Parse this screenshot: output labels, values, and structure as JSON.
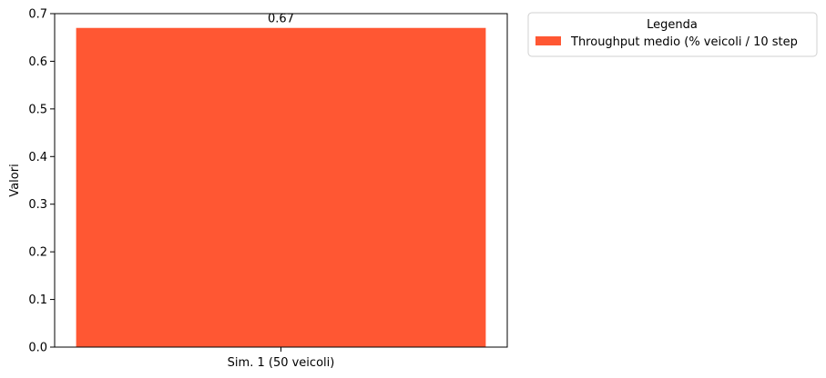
{
  "chart_data": {
    "type": "bar",
    "categories": [
      "Sim. 1 (50 veicoli)"
    ],
    "series": [
      {
        "name": "Throughput medio (% veicoli / 10 step",
        "values": [
          0.67
        ],
        "color": "#ff5733"
      }
    ],
    "data_labels": [
      "0.67"
    ],
    "xlabel": "",
    "ylabel": "Valori",
    "ylim": [
      0,
      0.7
    ],
    "yticks": [
      0.0,
      0.1,
      0.2,
      0.3,
      0.4,
      0.5,
      0.6,
      0.7
    ],
    "ytick_labels": [
      "0.0",
      "0.1",
      "0.2",
      "0.3",
      "0.4",
      "0.5",
      "0.6",
      "0.7"
    ],
    "grid": false,
    "legend": {
      "title": "Legenda",
      "placement": "outside-top-right"
    }
  }
}
